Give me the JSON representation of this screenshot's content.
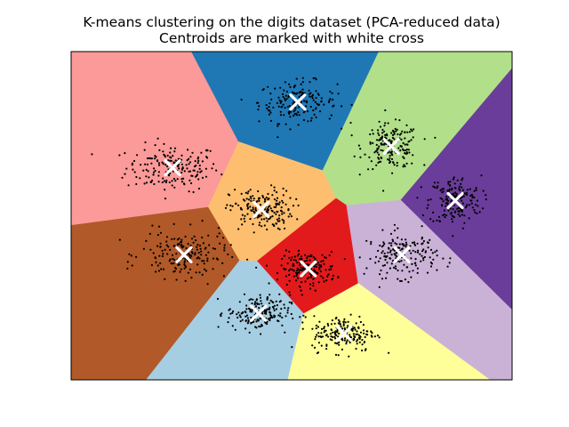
{
  "chart_data": {
    "type": "scatter",
    "title": "K-means clustering on the digits dataset (PCA-reduced data)",
    "subtitle": "Centroids are marked with white cross",
    "xlabel": "",
    "ylabel": "",
    "xlim": [
      0,
      100
    ],
    "ylim": [
      0,
      100
    ],
    "ticks": "none",
    "grid": false,
    "legend": "none",
    "region_colors": [
      "#fb9a99",
      "#1f78b4",
      "#b2df8a",
      "#6a3d9a",
      "#fdbf6f",
      "#e31a1c",
      "#cab2d6",
      "#b15928",
      "#a6cee3",
      "#ffff99"
    ],
    "point_color": "#000000",
    "centroid_color": "#ffffff",
    "centroids": [
      {
        "x": 23.0,
        "y": 64.6
      },
      {
        "x": 51.4,
        "y": 84.6
      },
      {
        "x": 72.6,
        "y": 71.1
      },
      {
        "x": 87.1,
        "y": 54.6
      },
      {
        "x": 43.1,
        "y": 51.9
      },
      {
        "x": 53.8,
        "y": 33.8
      },
      {
        "x": 75.0,
        "y": 38.1
      },
      {
        "x": 25.6,
        "y": 38.1
      },
      {
        "x": 42.5,
        "y": 20.3
      },
      {
        "x": 61.9,
        "y": 14.1
      }
    ],
    "cluster_spread": [
      [
        12.5,
        8.5
      ],
      [
        10.5,
        7.5
      ],
      [
        7.5,
        8.0
      ],
      [
        7.0,
        9.0
      ],
      [
        8.5,
        7.5
      ],
      [
        7.5,
        6.0
      ],
      [
        9.5,
        8.0
      ],
      [
        11.5,
        8.5
      ],
      [
        8.5,
        6.5
      ],
      [
        8.5,
        6.5
      ]
    ],
    "points_per_cluster": 180
  }
}
